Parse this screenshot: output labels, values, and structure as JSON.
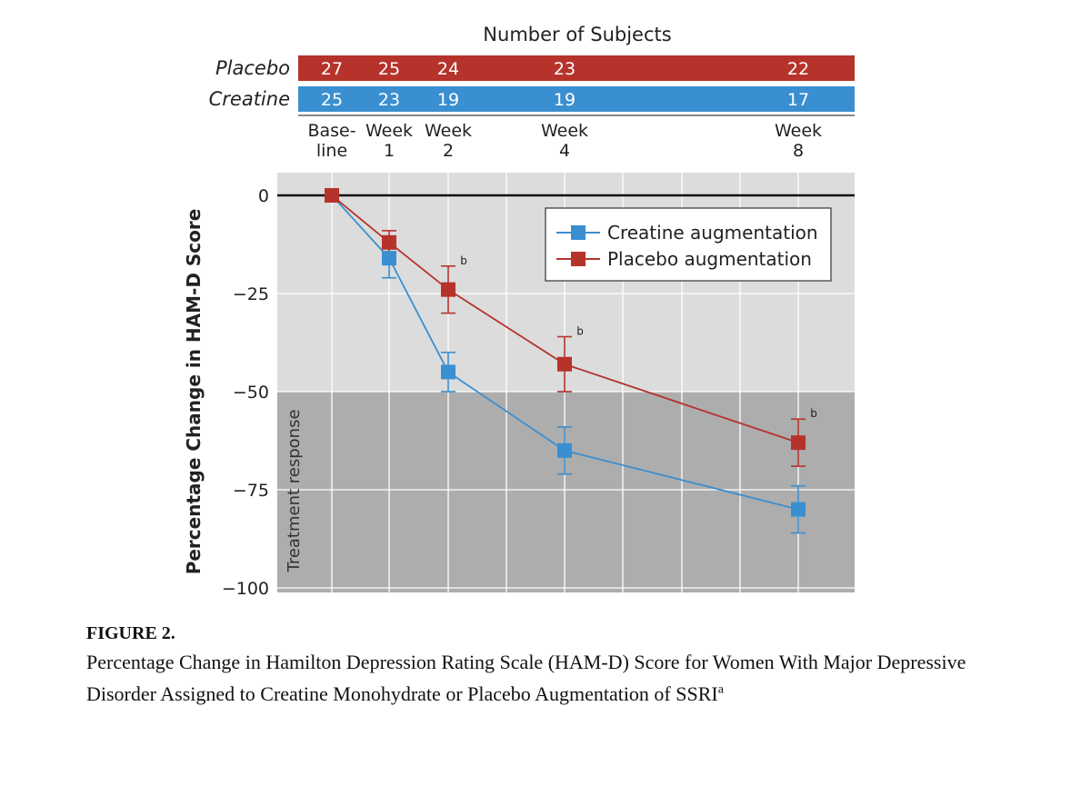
{
  "chart_data": {
    "type": "line",
    "header_title": "Number of Subjects",
    "x_ticks": [
      {
        "week": 0,
        "line1": "Base-",
        "line2": "line"
      },
      {
        "week": 1,
        "line1": "Week",
        "line2": "1"
      },
      {
        "week": 2,
        "line1": "Week",
        "line2": "2"
      },
      {
        "week": 4,
        "line1": "Week",
        "line2": "4"
      },
      {
        "week": 8,
        "line1": "Week",
        "line2": "8"
      }
    ],
    "subject_rows": [
      {
        "label": "Placebo",
        "color": "#b5332b",
        "counts": [
          "27",
          "25",
          "24",
          "23",
          "22"
        ]
      },
      {
        "label": "Creatine",
        "color": "#3a8fd0",
        "counts": [
          "25",
          "23",
          "19",
          "19",
          "17"
        ]
      }
    ],
    "ylabel": "Percentage Change in HAM-D Score",
    "yticks": [
      0,
      -25,
      -50,
      -75,
      -100
    ],
    "ytick_labels": [
      "0",
      "−25",
      "−50",
      "−75",
      "−100"
    ],
    "ylim": [
      -100,
      0
    ],
    "treatment_response_threshold": -50,
    "treatment_response_label": "Treatment response",
    "series": [
      {
        "name": "Creatine augmentation",
        "color": "#3a8fd0",
        "weeks": [
          0,
          1,
          2,
          4,
          8
        ],
        "values": [
          0,
          -16,
          -45,
          -65,
          -80
        ],
        "err_low": [
          0,
          -21,
          -50,
          -71,
          -86
        ],
        "err_high": [
          0,
          -11,
          -40,
          -59,
          -74
        ]
      },
      {
        "name": "Placebo augmentation",
        "color": "#b5332b",
        "weeks": [
          0,
          1,
          2,
          4,
          8
        ],
        "values": [
          0,
          -12,
          -24,
          -43,
          -63
        ],
        "err_low": [
          0,
          -15,
          -30,
          -50,
          -69
        ],
        "err_high": [
          0,
          -9,
          -18,
          -36,
          -57
        ]
      }
    ],
    "significance_markers": [
      {
        "week": 2,
        "value": -18,
        "label": "b"
      },
      {
        "week": 4,
        "value": -36,
        "label": "b"
      },
      {
        "week": 8,
        "value": -57,
        "label": "b"
      }
    ]
  },
  "caption": {
    "figure_label": "FIGURE 2.",
    "text": "Percentage Change in Hamilton Depression Rating Scale (HAM-D) Score for Women With Major Depressive Disorder Assigned to Creatine Monohydrate or Placebo Augmentation of SSRI",
    "superscript": "a"
  }
}
